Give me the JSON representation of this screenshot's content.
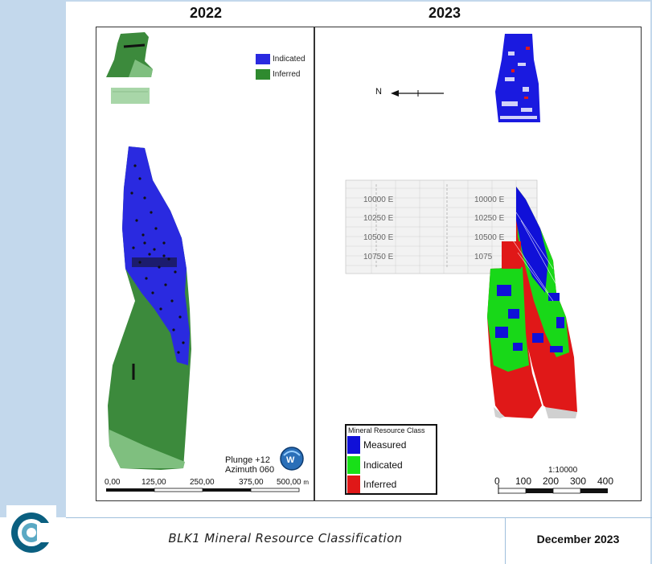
{
  "panels": {
    "left_title": "2022",
    "right_title": "2023"
  },
  "legend_2022": {
    "indicated_label": "Indicated",
    "inferred_label": "Inferred",
    "indicated_color": "#2a2ae0",
    "inferred_color": "#2f8a2f"
  },
  "scale_2022": {
    "ticks": [
      "0,00",
      "125,00",
      "250,00",
      "375,00",
      "500,00"
    ],
    "unit": "m"
  },
  "orientation": {
    "plunge": "Plunge +12",
    "azimuth": "Azimuth 060"
  },
  "north_arrow": {
    "label": "N"
  },
  "grid_labels": [
    "10000 E",
    "10250 E",
    "10500 E",
    "10750 E",
    "10000 E",
    "10250 E",
    "10500 E",
    "1075"
  ],
  "mineral_resource_class": {
    "title": "Mineral Resource Class",
    "items": [
      {
        "label": "Measured",
        "color": "#1010d8"
      },
      {
        "label": "Indicated",
        "color": "#18e018"
      },
      {
        "label": "Inferred",
        "color": "#e01818"
      }
    ]
  },
  "scale_2023": {
    "ratio": "1:10000",
    "ticks": [
      "0",
      "100",
      "200",
      "300",
      "400"
    ]
  },
  "footer": {
    "title": "BLK1 Mineral Resource Classification",
    "date": "December 2023"
  }
}
